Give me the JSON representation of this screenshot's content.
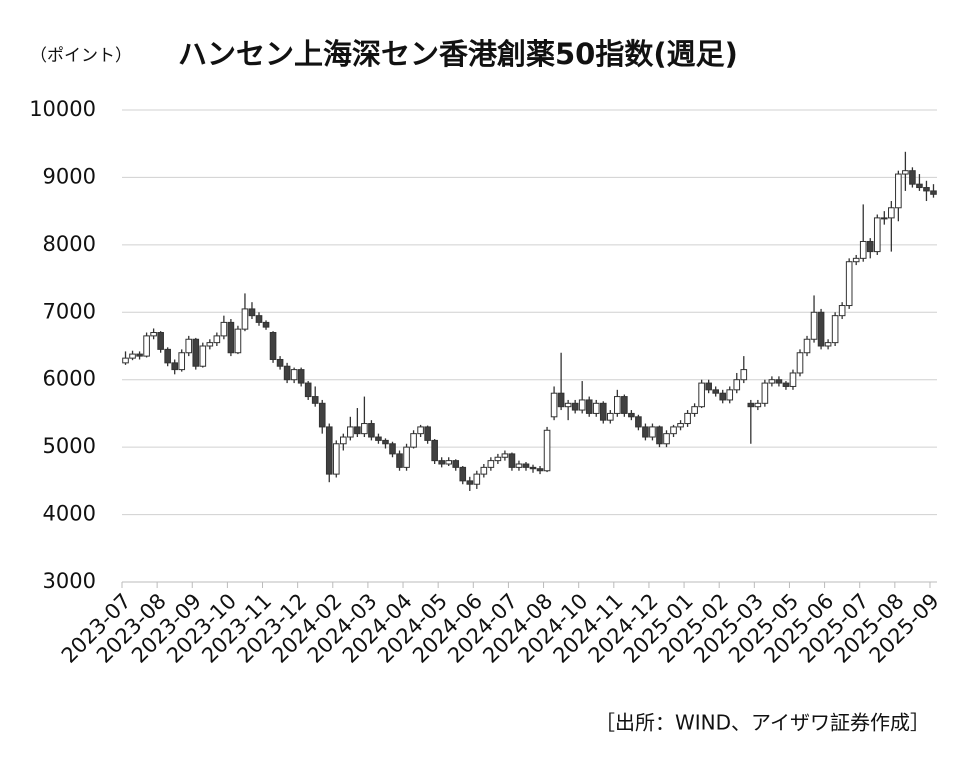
{
  "chart_data": {
    "type": "candlestick",
    "title": "ハンセン上海深セン香港創薬50指数(週足)",
    "y_axis_label": "（ポイント）",
    "source": "［出所：WIND、アイザワ証券作成］",
    "up_color": "#ffffff",
    "down_color": "#404040",
    "edge_color": "#333333",
    "ylim": [
      3000,
      10000
    ],
    "yticks": [
      3000,
      4000,
      5000,
      6000,
      7000,
      8000,
      9000,
      10000
    ],
    "grid": true,
    "categories": [
      "2023-07",
      null,
      null,
      null,
      null,
      "2023-08",
      null,
      null,
      null,
      null,
      "2023-09",
      null,
      null,
      null,
      null,
      "2023-10",
      null,
      null,
      null,
      null,
      "2023-11",
      null,
      null,
      null,
      null,
      "2023-12",
      null,
      null,
      null,
      null,
      "2024-02",
      null,
      null,
      null,
      null,
      "2024-03",
      null,
      null,
      null,
      null,
      "2024-04",
      null,
      null,
      null,
      null,
      "2024-05",
      null,
      null,
      null,
      null,
      "2024-06",
      null,
      null,
      null,
      null,
      "2024-07",
      null,
      null,
      null,
      null,
      "2024-08",
      null,
      null,
      null,
      null,
      "2024-10",
      null,
      null,
      null,
      null,
      "2024-11",
      null,
      null,
      null,
      null,
      "2024-12",
      null,
      null,
      null,
      null,
      "2025-01",
      null,
      null,
      null,
      null,
      "2025-02",
      null,
      null,
      null,
      null,
      "2025-03",
      null,
      null,
      null,
      null,
      "2025-05",
      null,
      null,
      null,
      null,
      "2025-06",
      null,
      null,
      null,
      null,
      "2025-07",
      null,
      null,
      null,
      null,
      "2025-08",
      null,
      null,
      null,
      null,
      "2025-09"
    ],
    "ohlc": [
      [
        6250,
        6420,
        6220,
        6320
      ],
      [
        6320,
        6430,
        6290,
        6380
      ],
      [
        6380,
        6420,
        6300,
        6350
      ],
      [
        6350,
        6700,
        6330,
        6650
      ],
      [
        6650,
        6760,
        6600,
        6700
      ],
      [
        6700,
        6720,
        6400,
        6450
      ],
      [
        6450,
        6480,
        6200,
        6250
      ],
      [
        6250,
        6300,
        6080,
        6150
      ],
      [
        6150,
        6450,
        6120,
        6400
      ],
      [
        6400,
        6650,
        6350,
        6600
      ],
      [
        6600,
        6620,
        6150,
        6200
      ],
      [
        6200,
        6550,
        6180,
        6500
      ],
      [
        6500,
        6600,
        6450,
        6550
      ],
      [
        6550,
        6700,
        6500,
        6650
      ],
      [
        6650,
        6950,
        6600,
        6850
      ],
      [
        6850,
        6900,
        6350,
        6400
      ],
      [
        6400,
        6800,
        6380,
        6750
      ],
      [
        6750,
        7280,
        6720,
        7050
      ],
      [
        7050,
        7150,
        6900,
        6950
      ],
      [
        6950,
        7000,
        6800,
        6850
      ],
      [
        6850,
        6880,
        6740,
        6780
      ],
      [
        6700,
        6720,
        6250,
        6300
      ],
      [
        6300,
        6350,
        6150,
        6200
      ],
      [
        6200,
        6250,
        5950,
        6000
      ],
      [
        6000,
        6180,
        5950,
        6150
      ],
      [
        6150,
        6180,
        5900,
        5950
      ],
      [
        5950,
        5980,
        5700,
        5750
      ],
      [
        5750,
        5900,
        5600,
        5650
      ],
      [
        5650,
        5700,
        5200,
        5300
      ],
      [
        5300,
        5350,
        4480,
        4600
      ],
      [
        4600,
        5100,
        4550,
        5050
      ],
      [
        5050,
        5200,
        4950,
        5150
      ],
      [
        5150,
        5450,
        5100,
        5300
      ],
      [
        5300,
        5580,
        5150,
        5200
      ],
      [
        5200,
        5750,
        5150,
        5350
      ],
      [
        5350,
        5400,
        5100,
        5150
      ],
      [
        5150,
        5200,
        5050,
        5100
      ],
      [
        5100,
        5130,
        4980,
        5050
      ],
      [
        5050,
        5080,
        4850,
        4900
      ],
      [
        4900,
        4950,
        4650,
        4700
      ],
      [
        4700,
        5050,
        4650,
        5000
      ],
      [
        5000,
        5250,
        4980,
        5200
      ],
      [
        5200,
        5330,
        5150,
        5300
      ],
      [
        5300,
        5320,
        5050,
        5100
      ],
      [
        5100,
        5120,
        4750,
        4800
      ],
      [
        4800,
        4850,
        4700,
        4750
      ],
      [
        4750,
        4850,
        4720,
        4800
      ],
      [
        4800,
        4820,
        4650,
        4700
      ],
      [
        4700,
        4720,
        4450,
        4500
      ],
      [
        4500,
        4560,
        4350,
        4450
      ],
      [
        4450,
        4650,
        4380,
        4600
      ],
      [
        4600,
        4750,
        4550,
        4700
      ],
      [
        4700,
        4850,
        4650,
        4800
      ],
      [
        4800,
        4900,
        4750,
        4850
      ],
      [
        4850,
        4950,
        4800,
        4900
      ],
      [
        4900,
        4920,
        4650,
        4700
      ],
      [
        4700,
        4800,
        4650,
        4750
      ],
      [
        4750,
        4780,
        4650,
        4700
      ],
      [
        4700,
        4740,
        4620,
        4680
      ],
      [
        4680,
        4720,
        4600,
        4650
      ],
      [
        4650,
        5300,
        4630,
        5250
      ],
      [
        5450,
        5900,
        5400,
        5800
      ],
      [
        5800,
        6400,
        5550,
        5600
      ],
      [
        5600,
        5700,
        5400,
        5650
      ],
      [
        5650,
        5700,
        5500,
        5550
      ],
      [
        5550,
        5980,
        5500,
        5700
      ],
      [
        5700,
        5750,
        5450,
        5500
      ],
      [
        5500,
        5700,
        5450,
        5650
      ],
      [
        5650,
        5680,
        5350,
        5400
      ],
      [
        5400,
        5550,
        5350,
        5500
      ],
      [
        5500,
        5850,
        5450,
        5750
      ],
      [
        5750,
        5780,
        5450,
        5500
      ],
      [
        5500,
        5550,
        5400,
        5450
      ],
      [
        5450,
        5480,
        5250,
        5300
      ],
      [
        5300,
        5350,
        5100,
        5150
      ],
      [
        5150,
        5350,
        5100,
        5300
      ],
      [
        5300,
        5320,
        5000,
        5050
      ],
      [
        5050,
        5250,
        5000,
        5200
      ],
      [
        5200,
        5330,
        5150,
        5300
      ],
      [
        5300,
        5400,
        5250,
        5350
      ],
      [
        5350,
        5550,
        5300,
        5500
      ],
      [
        5500,
        5650,
        5450,
        5600
      ],
      [
        5600,
        6000,
        5580,
        5950
      ],
      [
        5950,
        6000,
        5800,
        5850
      ],
      [
        5850,
        5900,
        5750,
        5800
      ],
      [
        5800,
        5850,
        5650,
        5700
      ],
      [
        5700,
        5900,
        5650,
        5850
      ],
      [
        5850,
        6100,
        5800,
        6000
      ],
      [
        6000,
        6350,
        5950,
        6150
      ],
      [
        5650,
        5700,
        5050,
        5600
      ],
      [
        5600,
        5700,
        5550,
        5650
      ],
      [
        5650,
        6000,
        5600,
        5950
      ],
      [
        5950,
        6050,
        5900,
        6000
      ],
      [
        6000,
        6050,
        5900,
        5950
      ],
      [
        5950,
        5980,
        5850,
        5900
      ],
      [
        5900,
        6150,
        5850,
        6100
      ],
      [
        6100,
        6450,
        6050,
        6400
      ],
      [
        6400,
        6650,
        6350,
        6600
      ],
      [
        6600,
        7250,
        6550,
        7000
      ],
      [
        7000,
        7050,
        6450,
        6500
      ],
      [
        6500,
        6600,
        6450,
        6550
      ],
      [
        6550,
        7000,
        6500,
        6950
      ],
      [
        6950,
        7150,
        6900,
        7100
      ],
      [
        7100,
        7800,
        7050,
        7750
      ],
      [
        7750,
        7850,
        7700,
        7800
      ],
      [
        7800,
        8600,
        7750,
        8050
      ],
      [
        8050,
        8100,
        7800,
        7900
      ],
      [
        7900,
        8450,
        7850,
        8400
      ],
      [
        8400,
        8500,
        8300,
        8400
      ],
      [
        8400,
        8650,
        7900,
        8550
      ],
      [
        8550,
        9100,
        8350,
        9050
      ],
      [
        9050,
        9380,
        8800,
        9100
      ],
      [
        9100,
        9150,
        8850,
        8900
      ],
      [
        8900,
        9050,
        8800,
        8850
      ],
      [
        8850,
        8950,
        8650,
        8800
      ],
      [
        8800,
        8900,
        8700,
        8750
      ]
    ]
  }
}
